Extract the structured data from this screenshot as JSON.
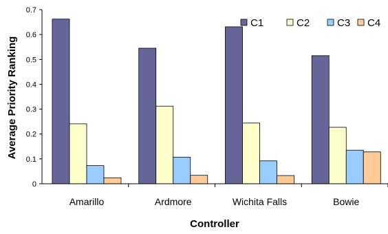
{
  "chart_data": {
    "type": "bar",
    "xlabel": "Controller",
    "ylabel": "Average Priority Ranking",
    "ylim": [
      0,
      0.7
    ],
    "yticks": [
      "0",
      "0.1",
      "0.2",
      "0.3",
      "0.4",
      "0.5",
      "0.6",
      "0.7"
    ],
    "categories": [
      "Amarillo",
      "Ardmore",
      "Wichita Falls",
      "Bowie"
    ],
    "series": [
      {
        "name": "C1",
        "color": "#666699",
        "values": [
          0.662,
          0.545,
          0.631,
          0.515
        ]
      },
      {
        "name": "C2",
        "color": "#FFFFCC",
        "values": [
          0.241,
          0.312,
          0.244,
          0.227
        ]
      },
      {
        "name": "C3",
        "color": "#99CCFF",
        "values": [
          0.073,
          0.107,
          0.092,
          0.135
        ]
      },
      {
        "name": "C4",
        "color": "#FFCC99",
        "values": [
          0.024,
          0.034,
          0.033,
          0.128
        ]
      }
    ],
    "legend_position": "top-right",
    "grid": false
  }
}
